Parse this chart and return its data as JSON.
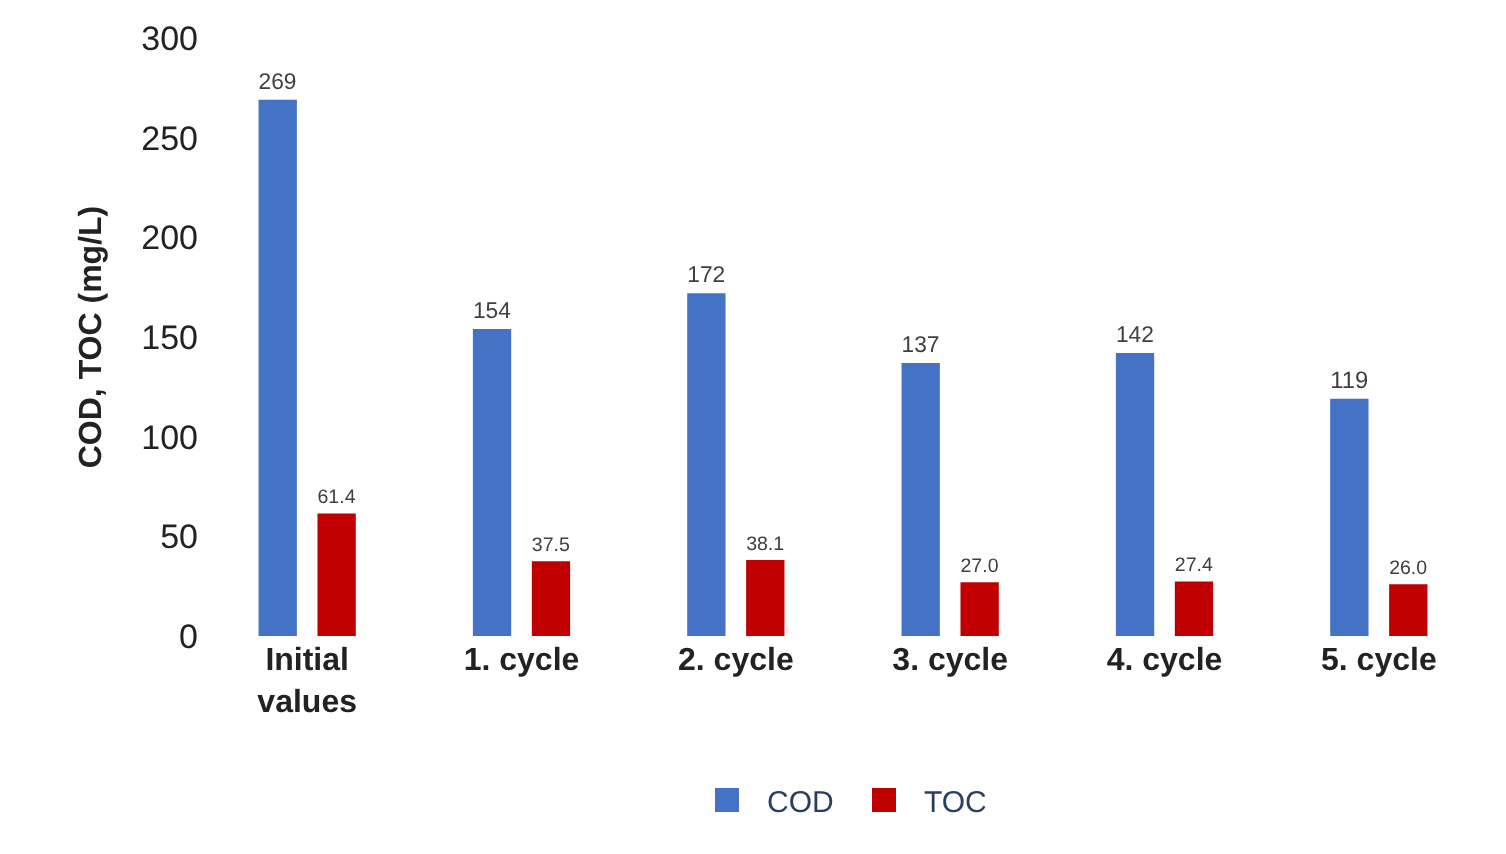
{
  "chart_data": {
    "type": "bar",
    "ylabel": "COD, TOC (mg/L)",
    "categories": [
      "Initial values",
      "1. cycle",
      "2. cycle",
      "3. cycle",
      "4. cycle",
      "5. cycle"
    ],
    "series": [
      {
        "name": "COD",
        "color": "#4472c4",
        "values": [
          269,
          154,
          172,
          137,
          142,
          119
        ],
        "value_labels": [
          "269",
          "154",
          "172",
          "137",
          "142",
          "119"
        ]
      },
      {
        "name": "TOC",
        "color": "#c00000",
        "values": [
          61.4,
          37.5,
          38.1,
          27.0,
          27.4,
          26.0
        ],
        "value_labels": [
          "61.4",
          "37.5",
          "38.1",
          "27.0",
          "27.4",
          "26.0"
        ]
      }
    ],
    "ylim": [
      0,
      300
    ],
    "yticks": [
      0,
      50,
      100,
      150,
      200,
      250,
      300
    ],
    "grid": false,
    "legend": "bottom"
  }
}
